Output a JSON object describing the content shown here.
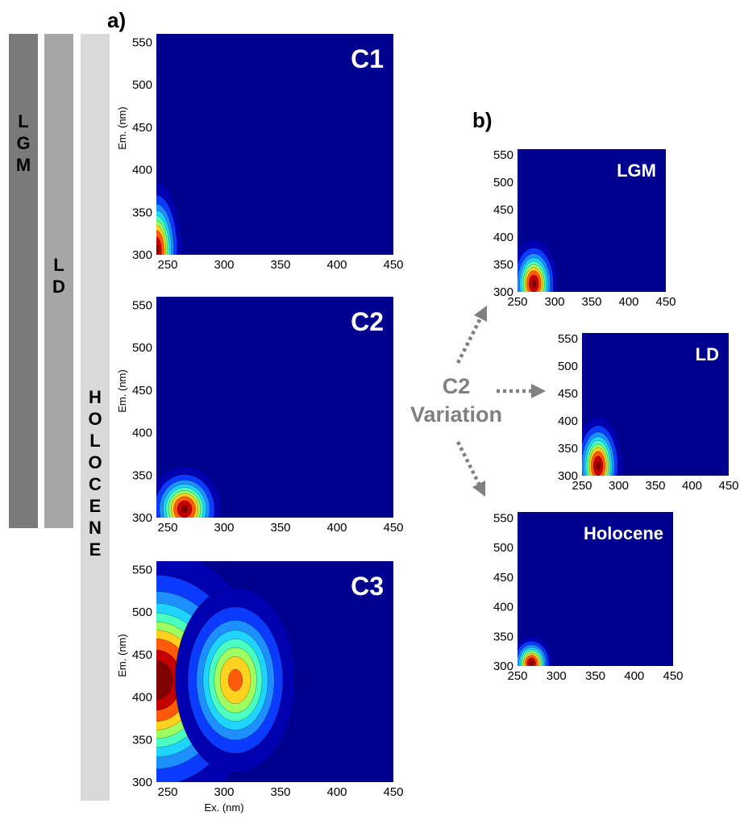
{
  "panel_labels": {
    "a": "a)",
    "b": "b)"
  },
  "period_bars": [
    {
      "label": "L G M",
      "letters": [
        "L",
        "G",
        "M"
      ],
      "color": "#7a7a7a"
    },
    {
      "label": "L D",
      "letters": [
        "L",
        "D"
      ],
      "color": "#a6a6a6"
    },
    {
      "label": "H O L O C E N E",
      "letters": [
        "H",
        "O",
        "L",
        "O",
        "C",
        "E",
        "N",
        "E"
      ],
      "color": "#d9d9d9"
    }
  ],
  "variation_label": {
    "line1": "C2",
    "line2": "Variation"
  },
  "colors": {
    "background": "#00008f",
    "colormap": [
      "#0000b0",
      "#0a3bff",
      "#1e8fff",
      "#1fd4ff",
      "#4affc0",
      "#a0ff60",
      "#ffd21f",
      "#ff5a0a",
      "#c40000",
      "#800000"
    ],
    "arrow": "#808080"
  },
  "chart_data": [
    {
      "type": "heatmap",
      "title": "C1",
      "xlabel": "",
      "ylabel": "Em. (nm)",
      "xlim": [
        240,
        450
      ],
      "ylim": [
        300,
        560
      ],
      "xticks": [
        250,
        300,
        350,
        400,
        450
      ],
      "yticks": [
        300,
        350,
        400,
        450,
        500,
        550
      ],
      "peaks": [
        {
          "ex": 240,
          "em": 305,
          "intensity": 0.95,
          "ex_width": 9,
          "em_width": 32
        }
      ]
    },
    {
      "type": "heatmap",
      "title": "C2",
      "xlabel": "",
      "ylabel": "Em. (nm)",
      "xlim": [
        240,
        450
      ],
      "ylim": [
        300,
        560
      ],
      "xticks": [
        250,
        300,
        350,
        400,
        450
      ],
      "yticks": [
        300,
        350,
        400,
        450,
        500,
        550
      ],
      "peaks": [
        {
          "ex": 265,
          "em": 310,
          "intensity": 0.95,
          "ex_width": 13,
          "em_width": 20
        }
      ]
    },
    {
      "type": "heatmap",
      "title": "C3",
      "xlabel": "Ex. (nm)",
      "ylabel": "Em. (nm)",
      "xlim": [
        240,
        450
      ],
      "ylim": [
        300,
        560
      ],
      "xticks": [
        250,
        300,
        350,
        400,
        450
      ],
      "yticks": [
        300,
        350,
        400,
        450,
        500,
        550
      ],
      "peaks": [
        {
          "ex": 240,
          "em": 420,
          "intensity": 1.0,
          "ex_width": 38,
          "em_width": 60
        },
        {
          "ex": 310,
          "em": 420,
          "intensity": 0.75,
          "ex_width": 22,
          "em_width": 45
        }
      ]
    },
    {
      "type": "heatmap",
      "title": "LGM",
      "xlabel": "",
      "ylabel": "",
      "xlim": [
        250,
        450
      ],
      "ylim": [
        300,
        560
      ],
      "xticks": [
        250,
        300,
        350,
        400,
        450
      ],
      "yticks": [
        300,
        350,
        400,
        450,
        500,
        550
      ],
      "peaks": [
        {
          "ex": 272,
          "em": 315,
          "intensity": 0.95,
          "ex_width": 13,
          "em_width": 32
        }
      ]
    },
    {
      "type": "heatmap",
      "title": "LD",
      "xlabel": "",
      "ylabel": "",
      "xlim": [
        250,
        450
      ],
      "ylim": [
        300,
        560
      ],
      "xticks": [
        250,
        300,
        350,
        400,
        450
      ],
      "yticks": [
        300,
        350,
        400,
        450,
        500,
        550
      ],
      "peaks": [
        {
          "ex": 272,
          "em": 318,
          "intensity": 0.95,
          "ex_width": 13,
          "em_width": 36
        }
      ]
    },
    {
      "type": "heatmap",
      "title": "Holocene",
      "xlabel": "",
      "ylabel": "",
      "xlim": [
        250,
        450
      ],
      "ylim": [
        300,
        560
      ],
      "xticks": [
        250,
        300,
        350,
        400,
        450
      ],
      "yticks": [
        300,
        350,
        400,
        450,
        500,
        550
      ],
      "peaks": [
        {
          "ex": 268,
          "em": 305,
          "intensity": 0.95,
          "ex_width": 11,
          "em_width": 18
        }
      ]
    }
  ]
}
